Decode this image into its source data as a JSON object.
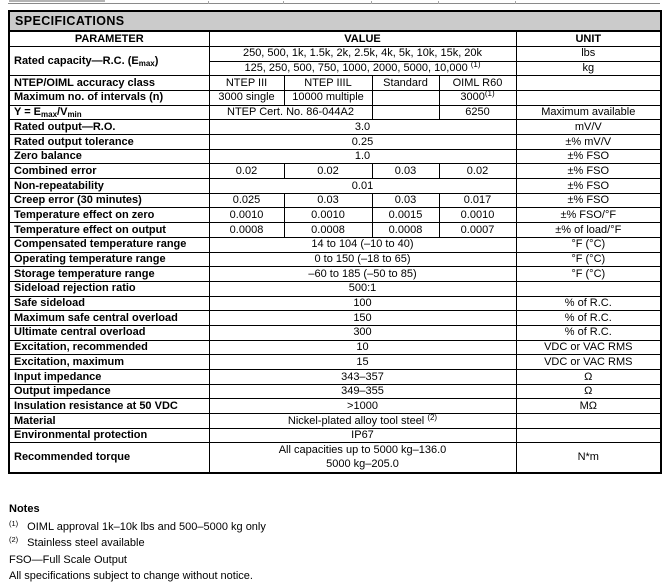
{
  "title": "SPECIFICATIONS",
  "table": {
    "headers": {
      "parameter": "PARAMETER",
      "value": "VALUE",
      "unit": "UNIT"
    },
    "rows": [
      {
        "param": "Rated capacity—R.C. (E<sub>max</sub>)",
        "param_rowspan": 2,
        "values": [
          {
            "html": "250, 500, 1k, 1.5k, 2k, 2.5k, 4k, 5k, 10k, 15k, 20k",
            "span": 4
          }
        ],
        "unit": "lbs"
      },
      {
        "values": [
          {
            "html": "125, 250, 500, 750, 1000, 2000, 5000, 10,000 <sup>(1)</sup>",
            "span": 4
          }
        ],
        "unit": "kg"
      },
      {
        "param": "NTEP/OIML accuracy class",
        "values": [
          {
            "html": "NTEP III"
          },
          {
            "html": "NTEP IIIL"
          },
          {
            "html": "Standard"
          },
          {
            "html": "OIML R60"
          }
        ],
        "unit": ""
      },
      {
        "param": "Maximum no. of intervals (n)",
        "values": [
          {
            "html": "3000 single"
          },
          {
            "html": "10000 multiple"
          },
          {
            "html": ""
          },
          {
            "html": "3000<sup>(1)</sup>"
          }
        ],
        "unit": ""
      },
      {
        "param": "Y = E<sub>max</sub>/V<sub>min</sub>",
        "values": [
          {
            "html": "NTEP Cert. No. 86-044A2",
            "span": 2
          },
          {
            "html": ""
          },
          {
            "html": "6250"
          }
        ],
        "unit": "Maximum available"
      },
      {
        "param": "Rated output—R.O.",
        "values": [
          {
            "html": "3.0",
            "span": 4
          }
        ],
        "unit": "mV/V"
      },
      {
        "param": "Rated output tolerance",
        "values": [
          {
            "html": "0.25",
            "span": 4
          }
        ],
        "unit": "±% mV/V"
      },
      {
        "param": "Zero balance",
        "values": [
          {
            "html": "1.0",
            "span": 4
          }
        ],
        "unit": "±% FSO"
      },
      {
        "param": "Combined error",
        "values": [
          {
            "html": "0.02"
          },
          {
            "html": "0.02"
          },
          {
            "html": "0.03"
          },
          {
            "html": "0.02"
          }
        ],
        "unit": "±% FSO"
      },
      {
        "param": "Non-repeatability",
        "values": [
          {
            "html": "0.01",
            "span": 4
          }
        ],
        "unit": "±% FSO"
      },
      {
        "param": "Creep error (30 minutes)",
        "values": [
          {
            "html": "0.025"
          },
          {
            "html": "0.03"
          },
          {
            "html": "0.03"
          },
          {
            "html": "0.017"
          }
        ],
        "unit": "±% FSO"
      },
      {
        "param": "Temperature effect on zero",
        "values": [
          {
            "html": "0.0010"
          },
          {
            "html": "0.0010"
          },
          {
            "html": "0.0015"
          },
          {
            "html": "0.0010"
          }
        ],
        "unit": "±% FSO/°F"
      },
      {
        "param": "Temperature effect on output",
        "values": [
          {
            "html": "0.0008"
          },
          {
            "html": "0.0008"
          },
          {
            "html": "0.0008"
          },
          {
            "html": "0.0007"
          }
        ],
        "unit": "±% of load/°F"
      },
      {
        "param": "Compensated temperature range",
        "values": [
          {
            "html": "14 to 104 (–10 to 40)",
            "span": 4
          }
        ],
        "unit": "°F (°C)"
      },
      {
        "param": "Operating temperature range",
        "values": [
          {
            "html": "0 to 150 (–18 to 65)",
            "span": 4
          }
        ],
        "unit": "°F (°C)"
      },
      {
        "param": "Storage temperature range",
        "values": [
          {
            "html": "–60 to 185 (–50 to 85)",
            "span": 4
          }
        ],
        "unit": "°F (°C)"
      },
      {
        "param": "Sideload rejection ratio",
        "values": [
          {
            "html": "500:1",
            "span": 4
          }
        ],
        "unit": ""
      },
      {
        "param": "Safe sideload",
        "values": [
          {
            "html": "100",
            "span": 4
          }
        ],
        "unit": "% of R.C."
      },
      {
        "param": "Maximum safe central overload",
        "values": [
          {
            "html": "150",
            "span": 4
          }
        ],
        "unit": "% of R.C."
      },
      {
        "param": "Ultimate central overload",
        "values": [
          {
            "html": "300",
            "span": 4
          }
        ],
        "unit": "% of R.C."
      },
      {
        "param": "Excitation, recommended",
        "values": [
          {
            "html": "10",
            "span": 4
          }
        ],
        "unit": "VDC or VAC RMS"
      },
      {
        "param": "Excitation, maximum",
        "values": [
          {
            "html": "15",
            "span": 4
          }
        ],
        "unit": "VDC or VAC RMS"
      },
      {
        "param": "Input impedance",
        "values": [
          {
            "html": "343–357",
            "span": 4
          }
        ],
        "unit": "Ω"
      },
      {
        "param": "Output impedance",
        "values": [
          {
            "html": "349–355",
            "span": 4
          }
        ],
        "unit": "Ω"
      },
      {
        "param": "Insulation resistance at 50 VDC",
        "values": [
          {
            "html": ">1000",
            "span": 4
          }
        ],
        "unit": "MΩ"
      },
      {
        "param": "Material",
        "values": [
          {
            "html": "Nickel-plated alloy tool steel <sup>(2)</sup>",
            "span": 4
          }
        ],
        "unit": ""
      },
      {
        "param": "Environmental protection",
        "values": [
          {
            "html": "IP67",
            "span": 4
          }
        ],
        "unit": ""
      },
      {
        "param": "Recommended torque",
        "values": [
          {
            "html": "All capacities up to 5000 kg–136.0<br>5000 kg–205.0",
            "span": 4,
            "multiline": true
          }
        ],
        "unit": "N*m"
      }
    ]
  },
  "notes": {
    "heading": "Notes",
    "items": [
      {
        "marker": "(1)",
        "html": "OIML approval 1k–10k lbs and 500–5000 kg only"
      },
      {
        "marker": "(2)",
        "html": "Stainless steel available"
      },
      {
        "marker": null,
        "html": "FSO—Full Scale Output"
      },
      {
        "marker": null,
        "html": "All specifications subject to change without notice."
      }
    ]
  },
  "style": {
    "titlebar_bg": "#cbcbcb",
    "border_color": "#000000"
  },
  "remnant_tick_positions": [
    208,
    283,
    371,
    438,
    515
  ]
}
